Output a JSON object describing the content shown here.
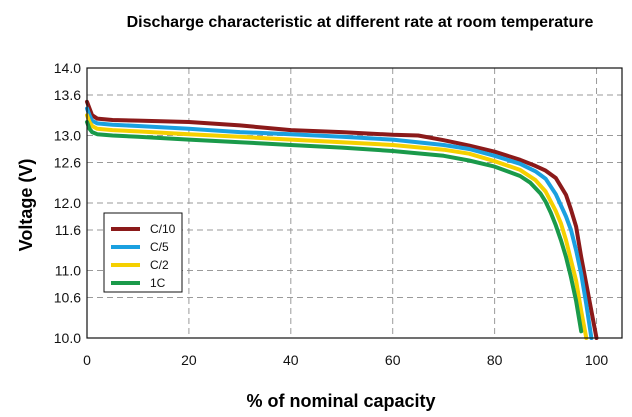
{
  "chart_data": {
    "type": "line",
    "title": "Discharge characteristic at different rate at room temperature",
    "xlabel": "% of nominal capacity",
    "ylabel": "Voltage (V)",
    "xlim": [
      0,
      105
    ],
    "ylim": [
      10.0,
      14.0
    ],
    "xticks": [
      0,
      20,
      40,
      60,
      80,
      100
    ],
    "yticks": [
      10.0,
      10.6,
      11.0,
      11.6,
      12.0,
      12.6,
      13.0,
      13.6,
      14.0
    ],
    "grid": true,
    "legend_position": "lower-left",
    "series": [
      {
        "name": "C/10",
        "color": "#8b1a1a",
        "x": [
          0,
          0.5,
          1,
          2,
          5,
          10,
          20,
          30,
          40,
          50,
          60,
          65,
          70,
          75,
          80,
          85,
          88,
          90,
          92,
          94,
          95,
          96,
          97,
          98,
          99,
          100
        ],
        "y": [
          13.5,
          13.4,
          13.3,
          13.25,
          13.23,
          13.22,
          13.2,
          13.15,
          13.08,
          13.05,
          13.01,
          13.0,
          12.93,
          12.85,
          12.76,
          12.64,
          12.55,
          12.48,
          12.37,
          12.12,
          11.9,
          11.65,
          11.2,
          10.8,
          10.4,
          10.0
        ]
      },
      {
        "name": "C/5",
        "color": "#1aa0e0",
        "x": [
          0,
          0.5,
          1,
          2,
          5,
          10,
          20,
          30,
          40,
          50,
          60,
          70,
          75,
          80,
          85,
          88,
          90,
          92,
          94,
          95,
          96,
          97,
          98,
          99
        ],
        "y": [
          13.4,
          13.3,
          13.22,
          13.18,
          13.16,
          13.14,
          13.1,
          13.05,
          13.02,
          12.98,
          12.94,
          12.86,
          12.8,
          12.7,
          12.58,
          12.47,
          12.36,
          12.13,
          11.8,
          11.6,
          11.3,
          10.95,
          10.5,
          10.0
        ]
      },
      {
        "name": "C/2",
        "color": "#f5d000",
        "x": [
          0,
          0.5,
          1,
          2,
          5,
          10,
          20,
          30,
          40,
          50,
          60,
          70,
          75,
          80,
          85,
          88,
          90,
          92,
          93,
          94,
          95,
          96,
          97,
          98
        ],
        "y": [
          13.3,
          13.2,
          13.14,
          13.1,
          13.08,
          13.06,
          13.02,
          12.98,
          12.94,
          12.9,
          12.86,
          12.79,
          12.73,
          12.62,
          12.49,
          12.34,
          12.17,
          11.88,
          11.7,
          11.45,
          11.15,
          10.85,
          10.4,
          10.0
        ]
      },
      {
        "name": "1C",
        "color": "#1a9a4a",
        "x": [
          0,
          0.5,
          1,
          2,
          5,
          10,
          20,
          30,
          40,
          50,
          60,
          70,
          75,
          80,
          85,
          87,
          89,
          90,
          91,
          92,
          93,
          94,
          95,
          96,
          97
        ],
        "y": [
          13.2,
          13.1,
          13.05,
          13.02,
          13.0,
          12.98,
          12.94,
          12.9,
          12.86,
          12.82,
          12.77,
          12.7,
          12.63,
          12.54,
          12.4,
          12.3,
          12.14,
          12.02,
          11.86,
          11.67,
          11.45,
          11.2,
          10.9,
          10.55,
          10.1
        ]
      }
    ]
  }
}
